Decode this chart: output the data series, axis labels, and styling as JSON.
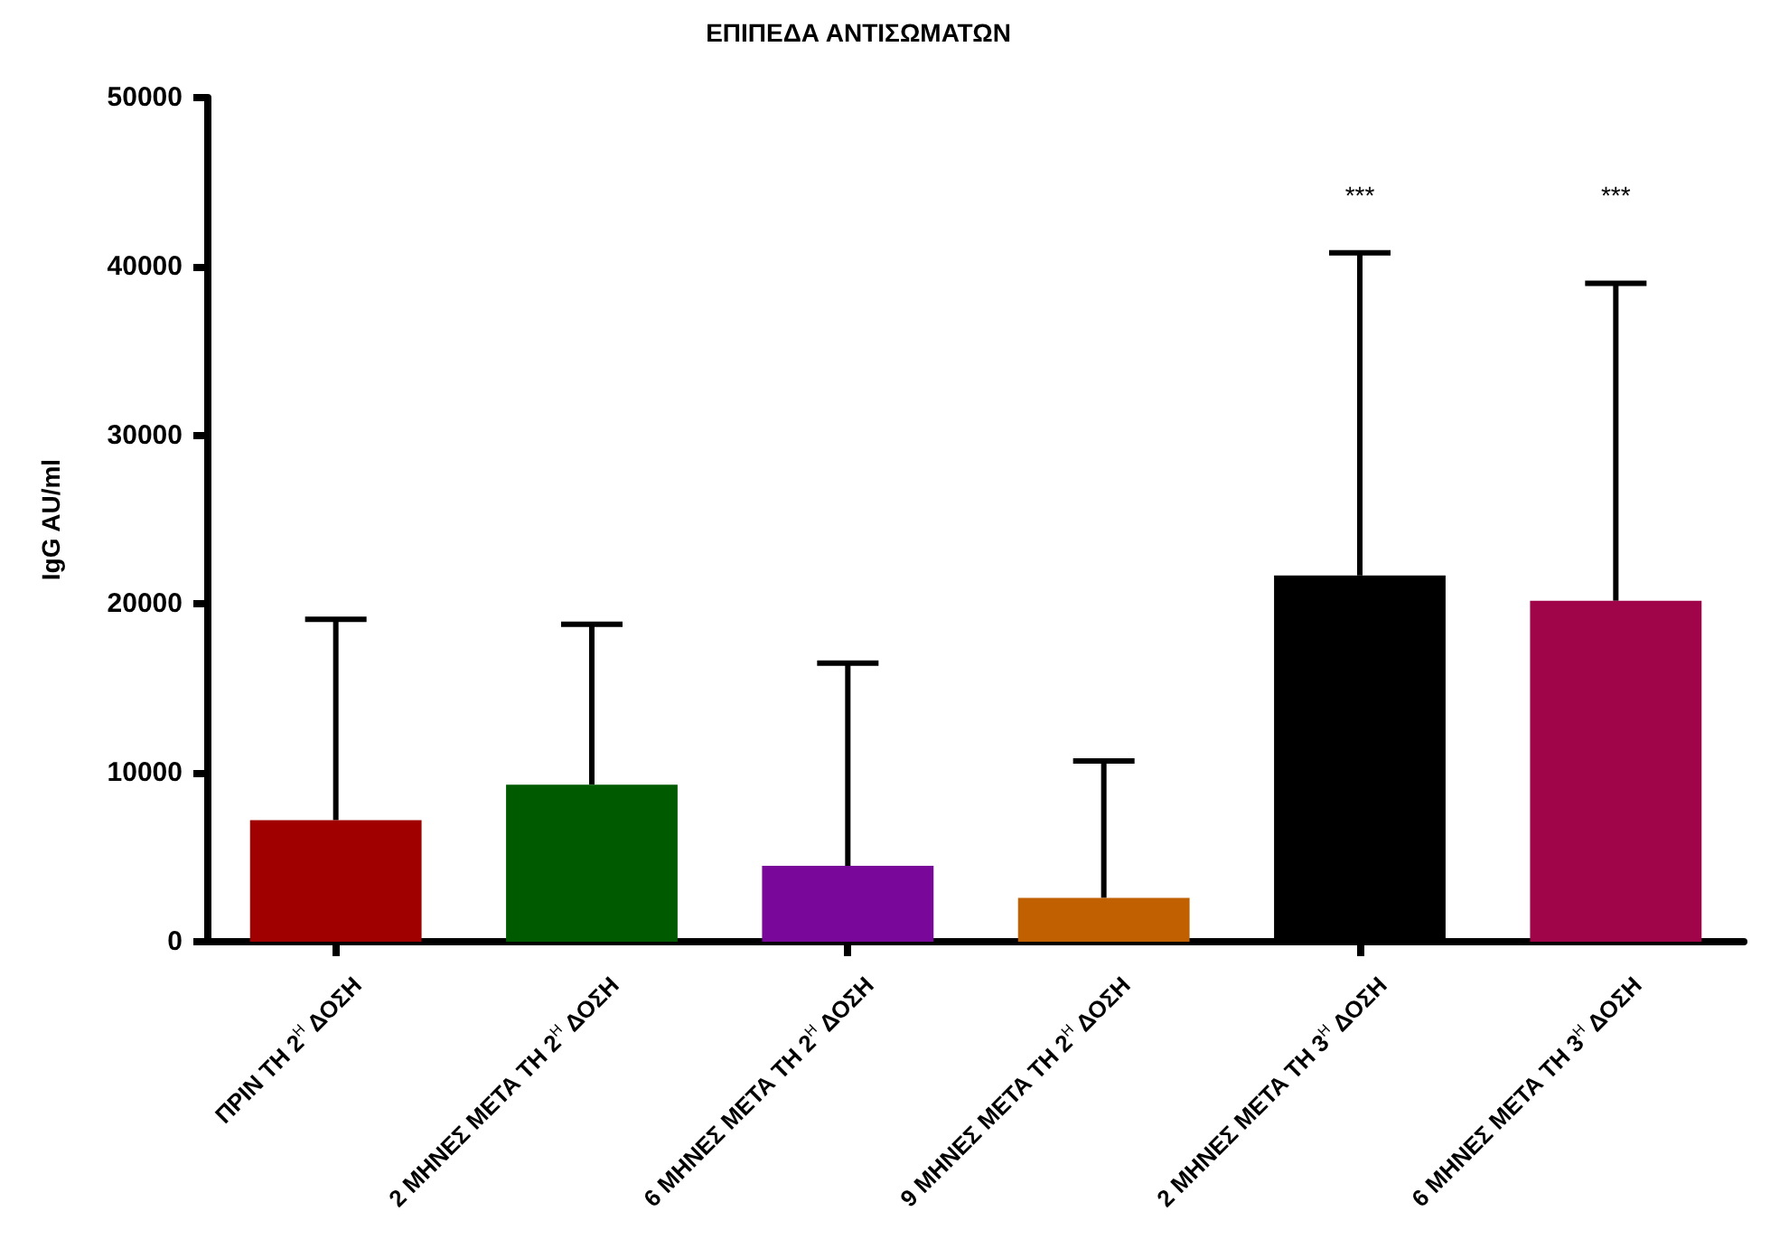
{
  "chart_data": {
    "type": "bar",
    "title": "ΕΠΙΠΕΔΑ ΑΝΤΙΣΩΜΑΤΩΝ",
    "ylabel": "IgG AU/ml",
    "categories": [
      "ΠΡΙΝ ΤΗ 2$^{Η}$  ΔΟΣΗ",
      "2 ΜΗΝΕΣ ΜΕΤΑ ΤΗ 2$^{Η}$  ΔΟΣΗ",
      "6 ΜΗΝΕΣ ΜΕΤΑ ΤΗ 2$^{Η}$  ΔΟΣΗ",
      "9 ΜΗΝΕΣ ΜΕΤΑ ΤΗ 2$^{Η}$  ΔΟΣΗ",
      "2 ΜΗΝΕΣ ΜΕΤΑ ΤΗ 3$^{Η}$  ΔΟΣΗ",
      "6 ΜΗΝΕΣ ΜΕΤΑ ΤΗ 3$^{Η}$  ΔΟΣΗ"
    ],
    "values": [
      7200,
      9300,
      4500,
      2600,
      21700,
      20200
    ],
    "colors": [
      "#a00000",
      "#005a00",
      "#78079a",
      "#c06000",
      "#000000",
      "#a0054a"
    ],
    "errors": [
      [
        7200,
        19100
      ],
      [
        9300,
        18800
      ],
      [
        4500,
        16500
      ],
      [
        2600,
        10700
      ],
      [
        21700,
        40800
      ],
      [
        20200,
        39000
      ]
    ],
    "ylim": [
      0,
      50000
    ],
    "yticks": [
      0,
      10000,
      20000,
      30000,
      40000,
      50000
    ],
    "annotations": [
      "***",
      "***"
    ]
  }
}
